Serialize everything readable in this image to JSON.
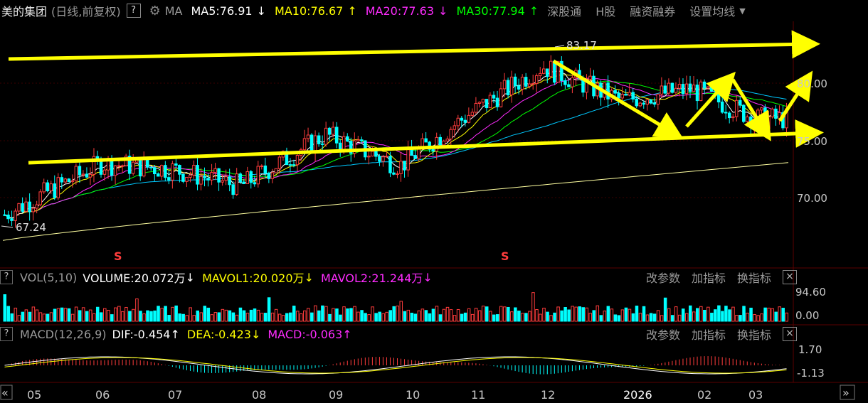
{
  "header": {
    "stock_name": "美的集团",
    "period_label": "(日线,前复权)",
    "help": "?",
    "ma_label": "MA",
    "ma5": "MA5:76.91",
    "ma10": "MA10:76.67",
    "ma20": "MA20:77.63",
    "ma30": "MA30:77.94",
    "link_sz": "深股通",
    "link_h": "H股",
    "link_margin": "融资融券",
    "link_settings": "设置均线",
    "colors": {
      "ma5": "#ffffff",
      "ma10": "#ffff00",
      "ma20": "#ff2cff",
      "ma30": "#00ff00",
      "ma60": "#00c8ff",
      "ma250": "#ffffa0",
      "up": "#ff3c3c",
      "down": "#00ffff",
      "annot": "#ffff00"
    }
  },
  "vol_panel": {
    "help": "?",
    "name": "VOL(5,10)",
    "volume": "VOLUME:20.072万",
    "mavol1": "MAVOL1:20.020万",
    "mavol2": "MAVOL2:21.244万",
    "btn_params": "改参数",
    "btn_add": "加指标",
    "btn_switch": "换指标",
    "close": "×"
  },
  "macd_panel": {
    "help": "?",
    "name": "MACD(12,26,9)",
    "dif": "DIF:-0.454",
    "dea": "DEA:-0.423",
    "macd": "MACD:-0.063",
    "btn_params": "改参数",
    "btn_add": "加指标",
    "btn_switch": "换指标",
    "close": "×"
  },
  "nav": {
    "left": "«",
    "right": "»"
  },
  "chart_data": {
    "type": "candlestick",
    "price_axis_ticks": [
      "80.00",
      "75.00",
      "70.00"
    ],
    "price_ylim": [
      65.0,
      84.5
    ],
    "high_label": "83.17",
    "low_label": "67.24",
    "vol_axis_ticks": [
      "94.60",
      "0.00"
    ],
    "macd_axis_ticks": [
      "1.70",
      "-1.13"
    ],
    "x_labels": [
      "05",
      "06",
      "07",
      "08",
      "09",
      "10",
      "11",
      "12",
      "2026",
      "02",
      "03"
    ],
    "signal_marker": "S",
    "close_series": {
      "months": [
        "05",
        "06",
        "07",
        "08",
        "09",
        "10",
        "11",
        "12",
        "2026",
        "02",
        "03"
      ],
      "values": [
        68.5,
        73.0,
        72.5,
        71.0,
        75.5,
        72.8,
        77.0,
        81.5,
        78.5,
        79.5,
        76.9
      ]
    },
    "annotation_lines": [
      {
        "from": [
          68.0,
          82.9
        ],
        "to": [
          78.8,
          83.4
        ],
        "style": "arrow"
      },
      {
        "from": [
          68.5,
          73.9
        ],
        "to": [
          78.8,
          75.6
        ],
        "style": "arrow"
      }
    ]
  }
}
